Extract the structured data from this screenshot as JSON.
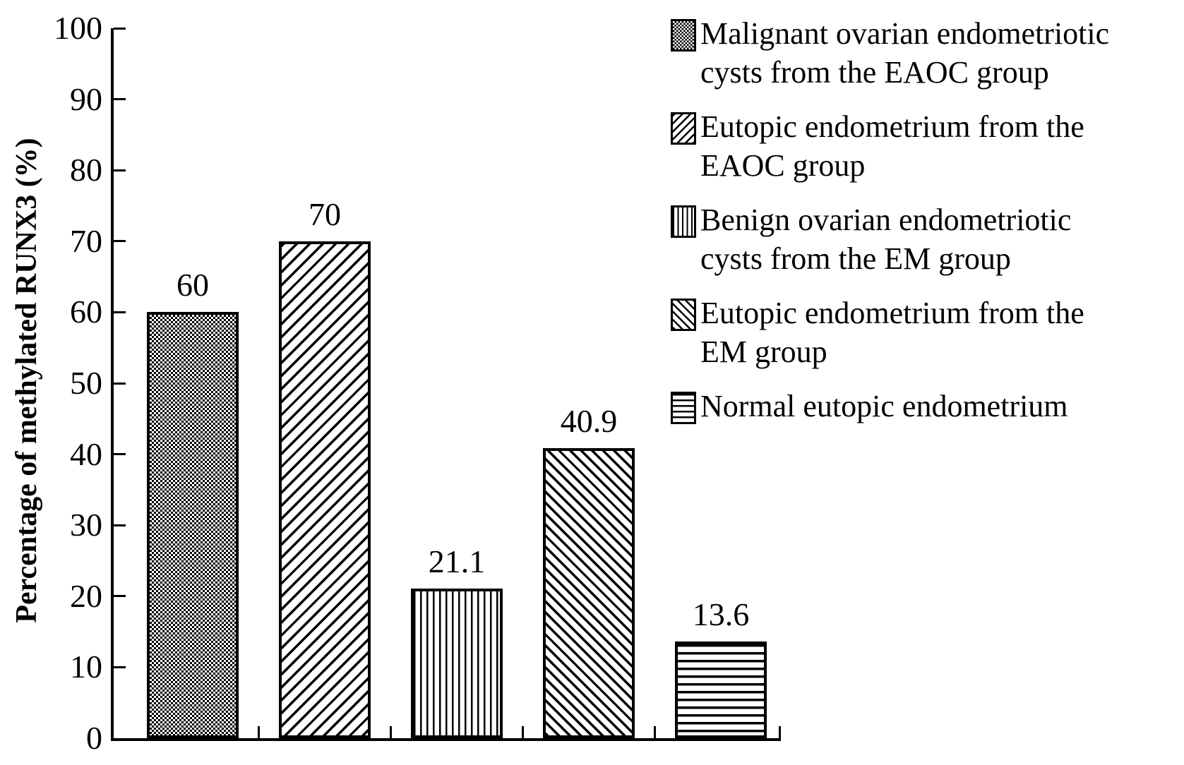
{
  "chart_data": {
    "type": "bar",
    "title": "",
    "xlabel": "",
    "ylabel": "Percentage of methylated RUNX3 (%)",
    "ylim": [
      0,
      100
    ],
    "ytick_step": 10,
    "ytick_labels": [
      "0",
      "10",
      "20",
      "30",
      "40",
      "50",
      "60",
      "70",
      "80",
      "90",
      "100"
    ],
    "grid": false,
    "legend_position": "upper right",
    "categories": [
      "Malignant ovarian endometriotic cysts from the EAOC group",
      "Eutopic endometrium from the EAOC group",
      "Benign ovarian endometriotic cysts from the EM group",
      "Eutopic endometrium from the EM group",
      "Normal eutopic endometrium"
    ],
    "values": [
      60,
      70,
      21.1,
      40.9,
      13.6
    ],
    "value_labels": [
      "60",
      "70",
      "21.1",
      "40.9",
      "13.6"
    ],
    "patterns": [
      "checker",
      "diag-forward",
      "vertical",
      "diag-back",
      "horizontal"
    ],
    "bar_color": "#000000",
    "background_color": "#ffffff"
  },
  "legend": {
    "items": [
      {
        "pattern": "checker",
        "icon": "checker-swatch-icon",
        "lines": [
          "Malignant ovarian endometriotic",
          "cysts from the EAOC group"
        ]
      },
      {
        "pattern": "diag-forward",
        "icon": "forward-diagonal-swatch-icon",
        "lines": [
          "Eutopic endometrium from the",
          "EAOC group"
        ]
      },
      {
        "pattern": "vertical",
        "icon": "vertical-lines-swatch-icon",
        "lines": [
          "Benign ovarian endometriotic",
          "cysts from the EM group"
        ]
      },
      {
        "pattern": "diag-back",
        "icon": "backward-diagonal-swatch-icon",
        "lines": [
          "Eutopic endometrium from the",
          "EM group"
        ]
      },
      {
        "pattern": "horizontal",
        "icon": "horizontal-lines-swatch-icon",
        "lines": [
          "Normal eutopic endometrium"
        ]
      }
    ]
  }
}
